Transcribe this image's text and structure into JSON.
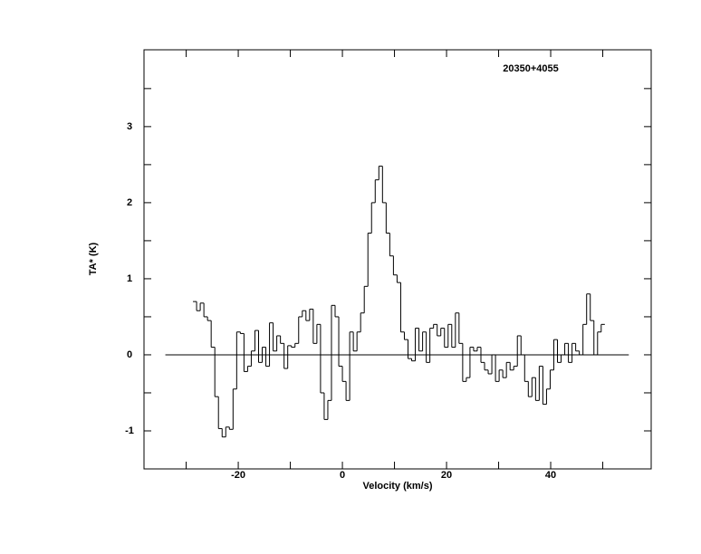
{
  "chart_data": {
    "type": "step",
    "title": "20350+4055",
    "xlabel": "Velocity (km/s)",
    "ylabel": "TA* (K)",
    "xlim": [
      -38.1,
      59.3
    ],
    "ylim": [
      -1.5,
      4.01
    ],
    "xticks": [
      -20,
      0,
      20,
      40
    ],
    "x_minor_ticks": [
      -30,
      -10,
      10,
      30,
      50
    ],
    "yticks": [
      -1,
      0,
      1,
      2,
      3
    ],
    "y_minor_ticks": [
      -0.5,
      0.5,
      1.5,
      2.5,
      3.5
    ],
    "baseline": {
      "value": 0,
      "xrange": [
        -34,
        55
      ]
    },
    "color": "#000000",
    "x": [
      -28.35,
      -27.65,
      -26.95,
      -26.25,
      -25.55,
      -24.85,
      -24.15,
      -23.45,
      -22.75,
      -22.05,
      -21.35,
      -20.65,
      -19.95,
      -19.25,
      -18.55,
      -17.85,
      -17.15,
      -16.45,
      -15.75,
      -15.05,
      -14.35,
      -13.65,
      -12.95,
      -12.25,
      -11.55,
      -10.85,
      -10.15,
      -9.45,
      -8.75,
      -8.05,
      -7.35,
      -6.65,
      -5.95,
      -5.25,
      -4.55,
      -3.85,
      -3.15,
      -2.45,
      -1.75,
      -1.05,
      -0.35,
      0.35,
      1.05,
      1.75,
      2.45,
      3.15,
      3.85,
      4.55,
      5.25,
      5.95,
      6.65,
      7.35,
      8.05,
      8.75,
      9.45,
      10.15,
      10.85,
      11.55,
      12.25,
      12.95,
      13.65,
      14.35,
      15.05,
      15.75,
      16.45,
      17.15,
      17.85,
      18.55,
      19.25,
      19.95,
      20.65,
      21.35,
      22.05,
      22.75,
      23.45,
      24.15,
      24.85,
      25.55,
      26.25,
      26.95,
      27.65,
      28.35,
      29.05,
      29.75,
      30.45,
      31.15,
      31.85,
      32.55,
      33.25,
      33.95,
      34.65,
      35.35,
      36.05,
      36.75,
      37.45,
      38.15,
      38.85,
      39.55,
      40.25,
      40.95,
      41.65,
      42.35,
      43.05,
      43.75,
      44.45,
      45.15,
      45.85,
      46.55,
      47.25,
      47.95,
      48.65,
      49.35,
      50.05
    ],
    "values": [
      0.7,
      0.58,
      0.68,
      0.5,
      0.45,
      0.1,
      -0.55,
      -0.97,
      -1.08,
      -0.95,
      -0.98,
      -0.45,
      0.3,
      0.28,
      -0.22,
      -0.15,
      0.05,
      0.32,
      -0.1,
      0.1,
      -0.15,
      0.42,
      0.05,
      0.25,
      0.15,
      -0.18,
      0.12,
      0.1,
      0.15,
      0.5,
      0.58,
      0.45,
      0.6,
      0.15,
      0.4,
      -0.5,
      -0.85,
      -0.6,
      0.65,
      0.5,
      -0.15,
      -0.35,
      -0.6,
      0.3,
      0.05,
      0.3,
      0.55,
      0.9,
      1.6,
      2.0,
      2.3,
      2.48,
      2.0,
      1.6,
      1.3,
      1.05,
      0.95,
      0.3,
      0.2,
      -0.05,
      -0.08,
      0.35,
      0.05,
      0.3,
      -0.1,
      0.35,
      0.4,
      0.25,
      0.35,
      0.1,
      0.4,
      0.1,
      0.55,
      0.15,
      -0.35,
      -0.3,
      0.1,
      0.05,
      0.1,
      -0.1,
      -0.2,
      -0.25,
      0.0,
      -0.35,
      -0.2,
      -0.3,
      -0.1,
      -0.2,
      -0.15,
      0.25,
      0.0,
      -0.35,
      -0.55,
      -0.3,
      -0.6,
      -0.15,
      -0.65,
      -0.45,
      -0.2,
      0.2,
      -0.1,
      0.0,
      0.15,
      -0.1,
      0.15,
      0.05,
      0.0,
      0.4,
      0.8,
      0.45,
      0.0,
      0.3,
      0.4
    ]
  }
}
